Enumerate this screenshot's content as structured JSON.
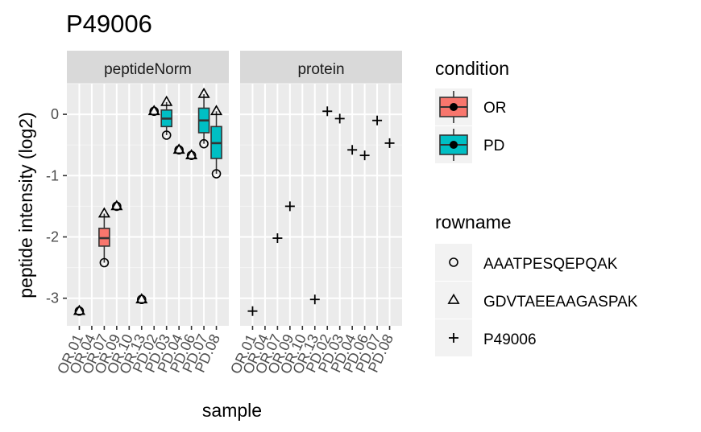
{
  "chart_data": {
    "type": "boxplot",
    "title": "P49006",
    "xlabel": "sample",
    "ylabel": "peptide intensity (log2)",
    "ylim": [
      -3.45,
      0.5
    ],
    "yticks": [
      0,
      -1,
      -2,
      -3
    ],
    "grid": true,
    "samples": [
      "OR.01",
      "OR.04",
      "OR.07",
      "OR.09",
      "OR.10",
      "OR.13",
      "PD.02",
      "PD.03",
      "PD.04",
      "PD.06",
      "PD.07",
      "PD.08"
    ],
    "facets": [
      {
        "label": "peptideNorm",
        "boxes": [
          {
            "sample": "OR.07",
            "condition": "OR",
            "q1": -2.15,
            "median": -2.02,
            "q3": -1.86,
            "min": -2.42,
            "max": -1.62
          },
          {
            "sample": "PD.03",
            "condition": "PD",
            "q1": -0.2,
            "median": -0.07,
            "q3": 0.07,
            "min": -0.34,
            "max": 0.2
          },
          {
            "sample": "PD.07",
            "condition": "PD",
            "q1": -0.3,
            "median": -0.1,
            "q3": 0.1,
            "min": -0.48,
            "max": 0.33
          },
          {
            "sample": "PD.08",
            "condition": "PD",
            "q1": -0.72,
            "median": -0.47,
            "q3": -0.2,
            "min": -0.97,
            "max": 0.05
          }
        ],
        "points": [
          {
            "sample": "OR.01",
            "rowname": "AAATPESQEPQAK",
            "y": -3.21
          },
          {
            "sample": "OR.01",
            "rowname": "GDVTAEEAAGASPAK",
            "y": -3.21
          },
          {
            "sample": "OR.07",
            "rowname": "AAATPESQEPQAK",
            "y": -2.42
          },
          {
            "sample": "OR.07",
            "rowname": "GDVTAEEAAGASPAK",
            "y": -1.62
          },
          {
            "sample": "OR.09",
            "rowname": "AAATPESQEPQAK",
            "y": -1.5
          },
          {
            "sample": "OR.09",
            "rowname": "GDVTAEEAAGASPAK",
            "y": -1.5
          },
          {
            "sample": "OR.13",
            "rowname": "AAATPESQEPQAK",
            "y": -3.02
          },
          {
            "sample": "OR.13",
            "rowname": "GDVTAEEAAGASPAK",
            "y": -3.02
          },
          {
            "sample": "PD.02",
            "rowname": "AAATPESQEPQAK",
            "y": 0.05
          },
          {
            "sample": "PD.02",
            "rowname": "GDVTAEEAAGASPAK",
            "y": 0.05
          },
          {
            "sample": "PD.03",
            "rowname": "AAATPESQEPQAK",
            "y": -0.34
          },
          {
            "sample": "PD.03",
            "rowname": "GDVTAEEAAGASPAK",
            "y": 0.2
          },
          {
            "sample": "PD.04",
            "rowname": "AAATPESQEPQAK",
            "y": -0.58
          },
          {
            "sample": "PD.04",
            "rowname": "GDVTAEEAAGASPAK",
            "y": -0.58
          },
          {
            "sample": "PD.06",
            "rowname": "AAATPESQEPQAK",
            "y": -0.67
          },
          {
            "sample": "PD.06",
            "rowname": "GDVTAEEAAGASPAK",
            "y": -0.67
          },
          {
            "sample": "PD.07",
            "rowname": "AAATPESQEPQAK",
            "y": -0.48
          },
          {
            "sample": "PD.07",
            "rowname": "GDVTAEEAAGASPAK",
            "y": 0.33
          },
          {
            "sample": "PD.08",
            "rowname": "AAATPESQEPQAK",
            "y": -0.97
          },
          {
            "sample": "PD.08",
            "rowname": "GDVTAEEAAGASPAK",
            "y": 0.05
          }
        ]
      },
      {
        "label": "protein",
        "boxes": [],
        "points": [
          {
            "sample": "OR.01",
            "rowname": "P49006",
            "y": -3.21
          },
          {
            "sample": "OR.07",
            "rowname": "P49006",
            "y": -2.02
          },
          {
            "sample": "OR.09",
            "rowname": "P49006",
            "y": -1.5
          },
          {
            "sample": "OR.13",
            "rowname": "P49006",
            "y": -3.02
          },
          {
            "sample": "PD.02",
            "rowname": "P49006",
            "y": 0.05
          },
          {
            "sample": "PD.03",
            "rowname": "P49006",
            "y": -0.07
          },
          {
            "sample": "PD.04",
            "rowname": "P49006",
            "y": -0.58
          },
          {
            "sample": "PD.06",
            "rowname": "P49006",
            "y": -0.67
          },
          {
            "sample": "PD.07",
            "rowname": "P49006",
            "y": -0.1
          },
          {
            "sample": "PD.08",
            "rowname": "P49006",
            "y": -0.47
          }
        ]
      }
    ],
    "legend": {
      "placement": "right",
      "condition": {
        "title": "condition",
        "items": [
          {
            "label": "OR",
            "color": "#F8766D"
          },
          {
            "label": "PD",
            "color": "#00BFC4"
          }
        ]
      },
      "rowname": {
        "title": "rowname",
        "items": [
          {
            "label": "AAATPESQEPQAK",
            "shape": "circle"
          },
          {
            "label": "GDVTAEEAAGASPAK",
            "shape": "triangle"
          },
          {
            "label": "P49006",
            "shape": "plus"
          }
        ]
      }
    }
  }
}
